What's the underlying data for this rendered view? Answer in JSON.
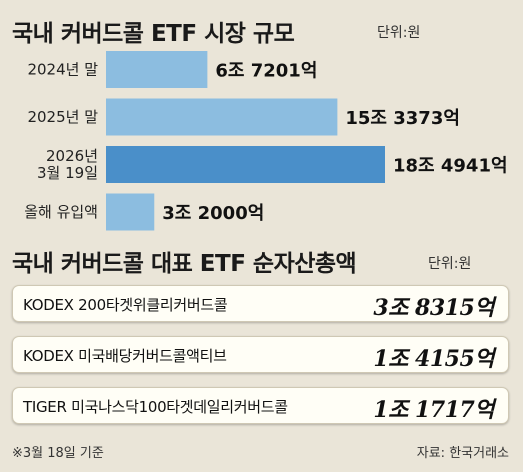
{
  "header": {
    "title": "국내 커버드콜 ETF 시장 규모",
    "unit": "단위:원"
  },
  "chart_data": {
    "type": "bar",
    "orientation": "horizontal",
    "categories": [
      "2024년 말",
      "2025년 말",
      "2026년 3월 19일",
      "올해 유입액"
    ],
    "category_lines": [
      [
        "2024년 말"
      ],
      [
        "2025년 말"
      ],
      [
        "2026년",
        "3월 19일"
      ],
      [
        "올해 유입액"
      ]
    ],
    "values": [
      6.7201,
      15.3373,
      18.4941,
      3.2
    ],
    "value_unit": "조",
    "data_labels": [
      "6조 7201억",
      "15조 3373억",
      "18조 4941억",
      "3조 2000억"
    ],
    "colors": [
      "#8cbde0",
      "#8cbde0",
      "#4a8fc9",
      "#8cbde0"
    ],
    "xlim": [
      0,
      18.4941
    ]
  },
  "section2": {
    "title": "국내 커버드콜 대표 ETF 순자산총액",
    "unit": "단위:원",
    "rows": [
      {
        "name": "KODEX 200타겟위클리커버드콜",
        "amount": "3조 8315억"
      },
      {
        "name": "KODEX 미국배당커버드콜액티브",
        "amount": "1조 4155억"
      },
      {
        "name": "TIGER 미국나스닥100타겟데일리커버드콜",
        "amount": "1조 1717억"
      }
    ]
  },
  "footer": {
    "note": "※3월 18일 기준",
    "source": "자료: 한국거래소"
  }
}
